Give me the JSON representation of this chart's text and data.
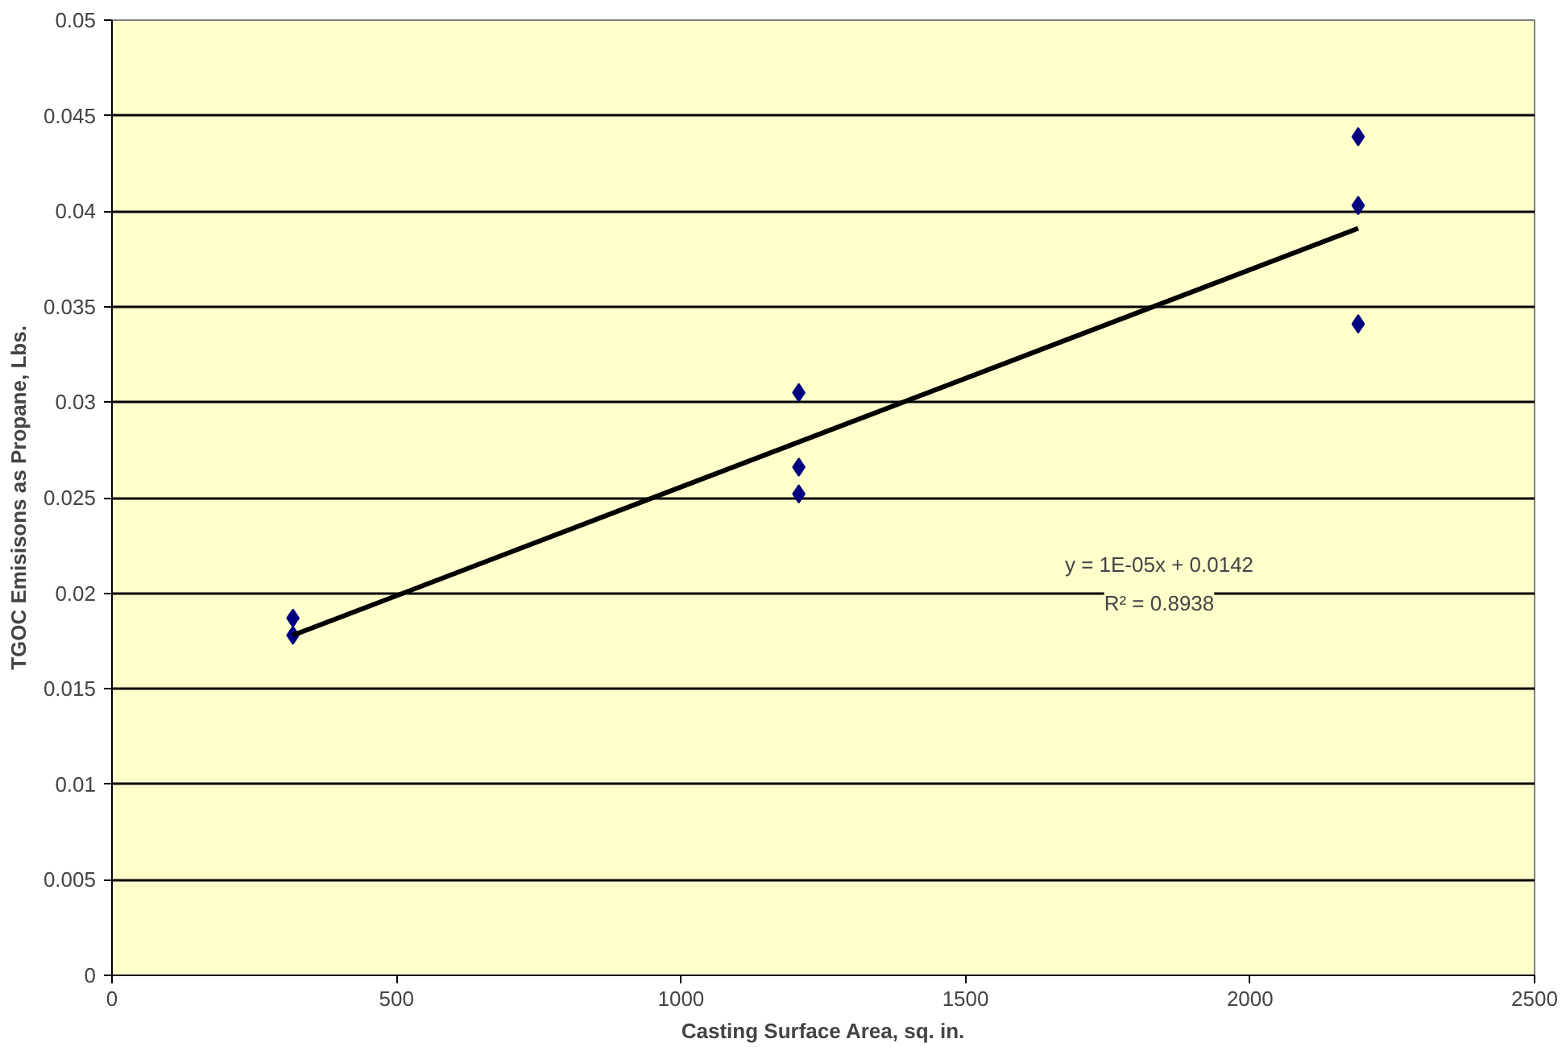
{
  "chart_data": {
    "type": "scatter",
    "xlabel": "Casting Surface Area, sq. in.",
    "ylabel": "TGOC Emisisons as Propane, Lbs.",
    "xlim": [
      0,
      2500
    ],
    "xticks": [
      0,
      500,
      1000,
      1500,
      2000,
      2500
    ],
    "ylim": [
      0,
      0.05
    ],
    "yticks": [
      0,
      0.005,
      0.01,
      0.015,
      0.02,
      0.025,
      0.03,
      0.035,
      0.04,
      0.045,
      0.05
    ],
    "grid": "y",
    "marker": "diamond",
    "series": [
      {
        "color": "#000080",
        "x": [
          318,
          318,
          1207,
          1207,
          1207,
          2190,
          2190,
          2190
        ],
        "values": [
          0.0187,
          0.0178,
          0.0305,
          0.0266,
          0.0252,
          0.0439,
          0.0403,
          0.0341
        ]
      },
      {
        "type": "line",
        "color": "#000000",
        "x": [
          318,
          2190
        ],
        "values": [
          0.0178,
          0.0391
        ],
        "marker": "none"
      }
    ],
    "annotations": [
      "y = 1E-05x + 0.0142",
      "R² = 0.8938"
    ]
  }
}
